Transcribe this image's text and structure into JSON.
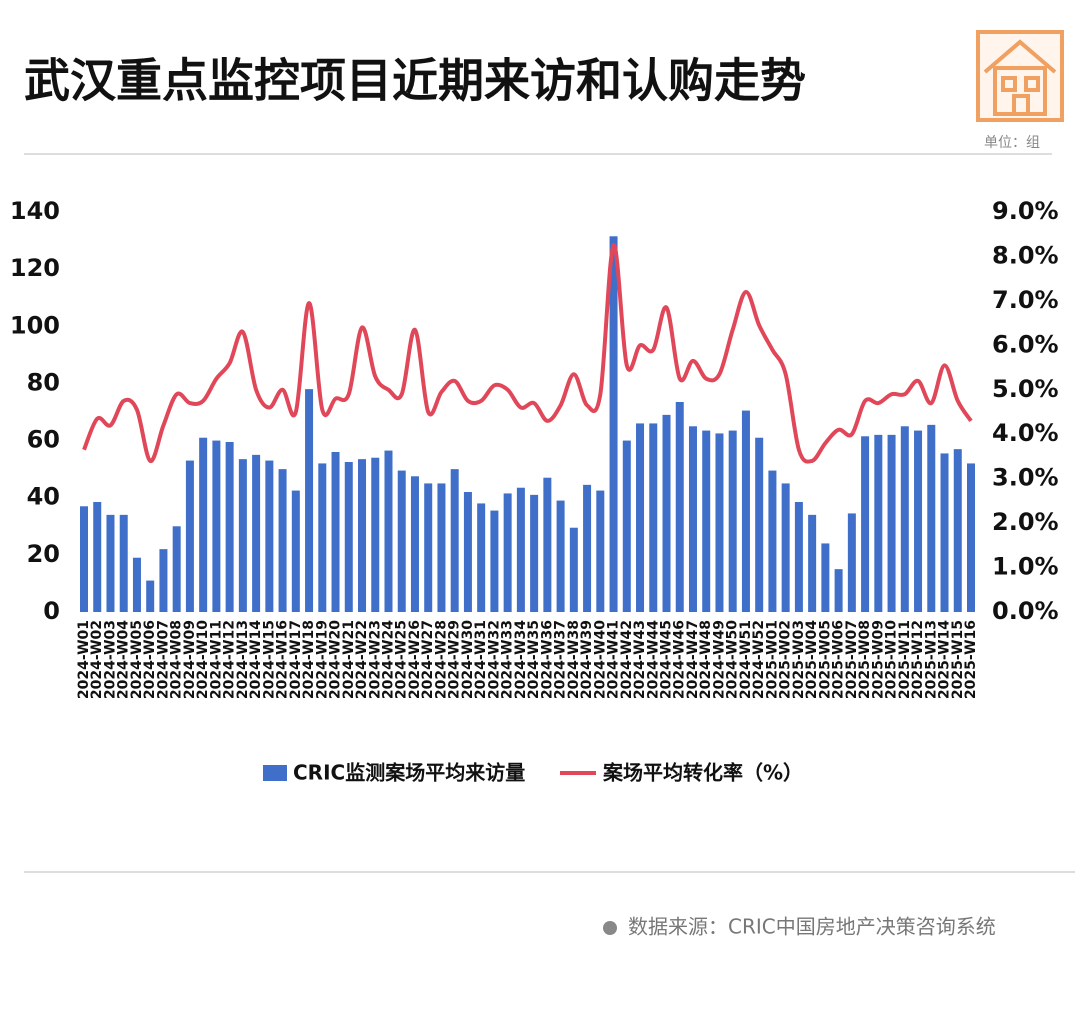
{
  "chart_data": {
    "type": "bar_line",
    "title": "武汉重点监控项目近期来访和认购走势",
    "unit": "单位：组",
    "source": "数据来源：CRIC中国房地产决策咨询系统",
    "categories": [
      "2024-W01",
      "2024-W02",
      "2024-W03",
      "2024-W04",
      "2024-W05",
      "2024-W06",
      "2024-W07",
      "2024-W08",
      "2024-W09",
      "2024-W10",
      "2024-W11",
      "2024-W12",
      "2024-W13",
      "2024-W14",
      "2024-W15",
      "2024-W16",
      "2024-W17",
      "2024-W18",
      "2024-W19",
      "2024-W20",
      "2024-W21",
      "2024-W22",
      "2024-W23",
      "2024-W24",
      "2024-W25",
      "2024-W26",
      "2024-W27",
      "2024-W28",
      "2024-W29",
      "2024-W30",
      "2024-W31",
      "2024-W32",
      "2024-W33",
      "2024-W34",
      "2024-W35",
      "2024-W36",
      "2024-W37",
      "2024-W38",
      "2024-W39",
      "2024-W40",
      "2024-W41",
      "2024-W42",
      "2024-W43",
      "2024-W44",
      "2024-W45",
      "2024-W46",
      "2024-W47",
      "2024-W48",
      "2024-W49",
      "2024-W50",
      "2024-W51",
      "2024-W52",
      "2025-W01",
      "2025-W02",
      "2025-W03",
      "2025-W04",
      "2025-W05",
      "2025-W06",
      "2025-W07",
      "2025-W08",
      "2025-W09",
      "2025-W10",
      "2025-W11",
      "2025-W12",
      "2025-W13",
      "2025-W14",
      "2025-W15",
      "2025-W16"
    ],
    "series": [
      {
        "name": "CRIC监测案场平均来访量",
        "color": "#3f6fc9",
        "values": [
          37,
          38.5,
          34,
          34,
          19,
          11,
          22,
          30,
          53,
          61,
          60,
          59.5,
          53.5,
          55,
          53,
          50,
          42.5,
          78,
          52,
          56,
          52.5,
          53.5,
          54,
          56.5,
          49.5,
          47.5,
          45,
          45,
          50,
          42,
          38,
          35.5,
          41.5,
          43.5,
          41,
          47,
          39,
          29.5,
          44.5,
          42.5,
          131.5,
          60,
          66,
          66,
          69,
          73.5,
          65,
          63.5,
          62.5,
          63.5,
          70.5,
          61,
          49.5,
          45,
          38.5,
          34,
          24,
          15,
          34.5,
          61.5,
          62,
          62,
          65,
          63.5,
          65.5,
          55.5,
          57,
          52
        ]
      },
      {
        "name": "案场平均转化率（%）",
        "color": "#e0485a",
        "axis": "y2",
        "values": [
          3.65,
          4.35,
          4.2,
          4.75,
          4.55,
          3.4,
          4.2,
          4.9,
          4.7,
          4.75,
          5.25,
          5.6,
          6.3,
          5.0,
          4.6,
          5.0,
          4.5,
          6.95,
          4.55,
          4.8,
          4.9,
          6.4,
          5.3,
          5.0,
          4.9,
          6.35,
          4.5,
          4.95,
          5.2,
          4.75,
          4.75,
          5.1,
          5.0,
          4.6,
          4.7,
          4.3,
          4.65,
          5.35,
          4.65,
          4.9,
          8.25,
          5.55,
          6.0,
          5.9,
          6.85,
          5.25,
          5.65,
          5.25,
          5.35,
          6.35,
          7.2,
          6.45,
          5.9,
          5.35,
          3.65,
          3.4,
          3.8,
          4.1,
          4.0,
          4.75,
          4.7,
          4.9,
          4.9,
          5.2,
          4.7,
          5.55,
          4.75,
          4.3
        ]
      }
    ],
    "ylim": [
      0,
      140
    ],
    "yticks": [
      0,
      20,
      40,
      60,
      80,
      100,
      120,
      140
    ],
    "y2lim": [
      0,
      9
    ],
    "y2ticks": [
      {
        "value": 0,
        "label": "0.0%"
      },
      {
        "value": 1,
        "label": "1.0%"
      },
      {
        "value": 2,
        "label": "2.0%"
      },
      {
        "value": 3,
        "label": "3.0%"
      },
      {
        "value": 4,
        "label": "4.0%"
      },
      {
        "value": 5,
        "label": "5.0%"
      },
      {
        "value": 6,
        "label": "6.0%"
      },
      {
        "value": 7,
        "label": "7.0%"
      },
      {
        "value": 8,
        "label": "8.0%"
      },
      {
        "value": 9,
        "label": "9.0%"
      }
    ]
  }
}
